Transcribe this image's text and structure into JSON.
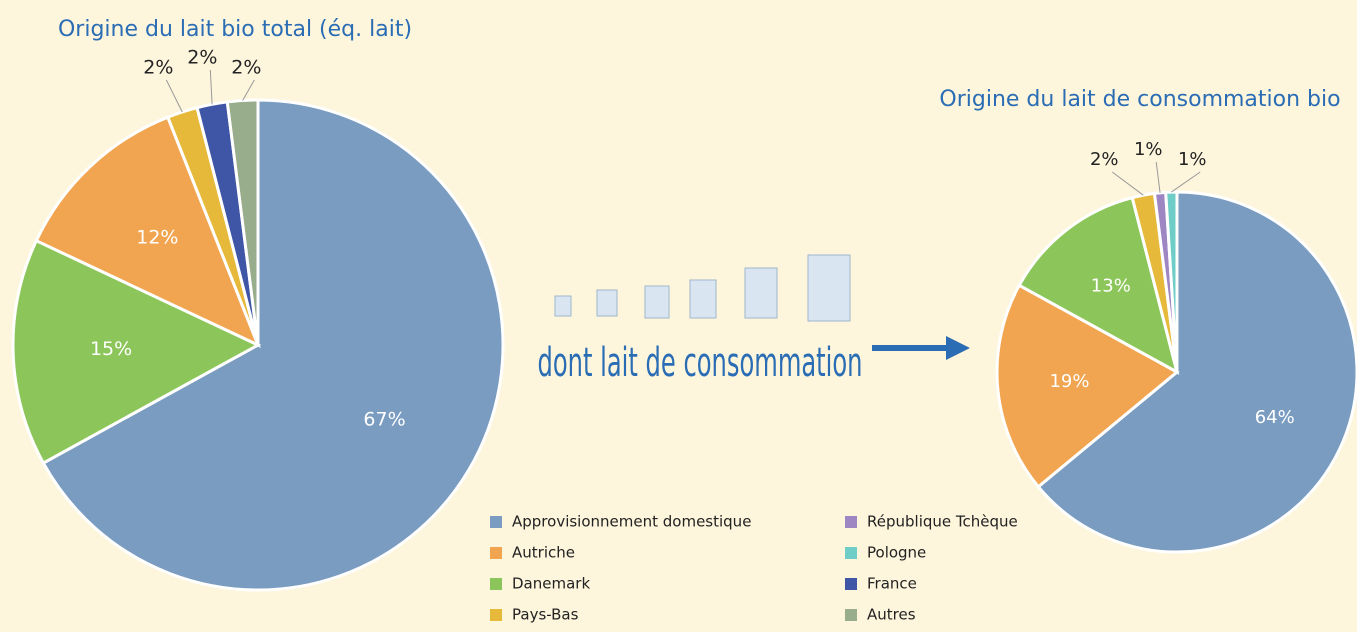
{
  "chart_data": [
    {
      "type": "pie",
      "title": "Origine du lait bio total (éq. lait)",
      "categories": [
        "Approvisionnement domestique",
        "Danemark",
        "Autriche",
        "Pays-Bas",
        "France",
        "Autres"
      ],
      "values": [
        67,
        15,
        12,
        2,
        2,
        2
      ],
      "value_labels": [
        "67%",
        "15%",
        "12%",
        "2%",
        "2%",
        "2%"
      ],
      "colors": [
        "#7a9cc0",
        "#8cc65a",
        "#f2a550",
        "#e6b93a",
        "#3f55a5",
        "#98ad8c"
      ]
    },
    {
      "type": "pie",
      "title": "Origine du lait de consommation bio",
      "categories": [
        "Approvisionnement domestique",
        "Autriche",
        "Danemark",
        "Pays-Bas",
        "République Tchèque",
        "Pologne"
      ],
      "values": [
        64,
        19,
        13,
        2,
        1,
        1
      ],
      "value_labels": [
        "64%",
        "19%",
        "13%",
        "2%",
        "1%",
        "1%"
      ],
      "colors": [
        "#7a9cc0",
        "#f2a550",
        "#8cc65a",
        "#e6b93a",
        "#9d86c2",
        "#6fcdc8"
      ]
    }
  ],
  "annotation": "dont lait de consommation",
  "legend": {
    "items": [
      {
        "name": "Approvisionnement domestique",
        "color": "#7a9cc0"
      },
      {
        "name": "Autriche",
        "color": "#f2a550"
      },
      {
        "name": "Danemark",
        "color": "#8cc65a"
      },
      {
        "name": "Pays-Bas",
        "color": "#e6b93a"
      },
      {
        "name": "République Tchèque",
        "color": "#9d86c2"
      },
      {
        "name": "Pologne",
        "color": "#6fcdc8"
      },
      {
        "name": "France",
        "color": "#3f55a5"
      },
      {
        "name": "Autres",
        "color": "#98ad8c"
      }
    ]
  }
}
